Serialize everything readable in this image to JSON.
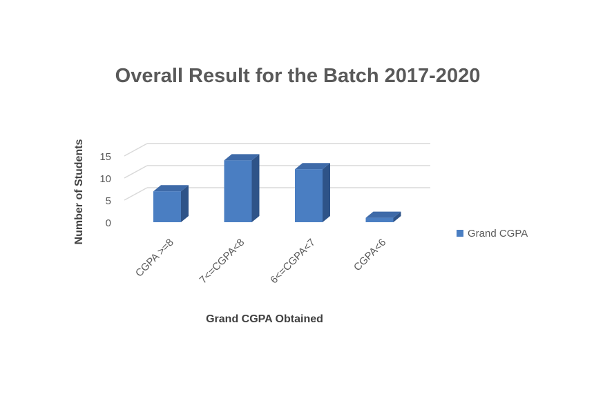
{
  "chart_data": {
    "type": "bar",
    "title": "Overall Result for the Batch 2017-2020",
    "xlabel": "Grand CGPA Obtained",
    "ylabel": "Number of Students",
    "categories": [
      "CGPA >=8",
      "7<=CGPA<8",
      "6<=CGPA<7",
      "CGPA<6"
    ],
    "series": [
      {
        "name": "Grand CGPA",
        "values": [
          7,
          14,
          12,
          1
        ]
      }
    ],
    "ylim": [
      0,
      15
    ],
    "yticks": [
      0,
      5,
      10,
      15
    ],
    "grid": true,
    "legend_position": "right",
    "style": "3d-column",
    "colors": {
      "front": "#4a7ec2",
      "top": "#3e6aa8",
      "side": "#2e5388",
      "grid": "#d9d9d9"
    }
  }
}
